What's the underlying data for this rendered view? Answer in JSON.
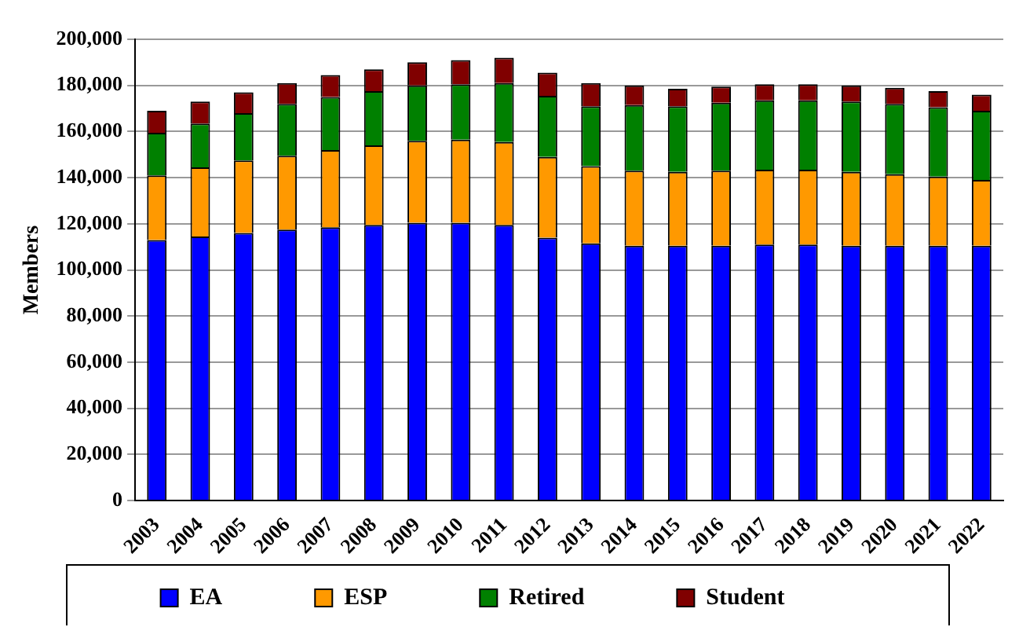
{
  "chart_data": {
    "type": "bar",
    "ylabel": "Members",
    "stacked": true,
    "grid": "y",
    "legend": "bottom",
    "categories": [
      "2003",
      "2004",
      "2005",
      "2006",
      "2007",
      "2008",
      "2009",
      "2010",
      "2011",
      "2012",
      "2013",
      "2014",
      "2015",
      "2016",
      "2017",
      "2018",
      "2019",
      "2020",
      "2021",
      "2022"
    ],
    "ylim": [
      0,
      200000
    ],
    "yticks": [
      0,
      {
        "value": 20000,
        "label": "20,000"
      },
      {
        "value": 40000,
        "label": "40,000"
      },
      {
        "value": 60000,
        "label": "60,000"
      },
      {
        "value": 80000,
        "label": "80,000"
      },
      {
        "value": 100000,
        "label": "100,000"
      },
      {
        "value": 120000,
        "label": "120,000"
      },
      {
        "value": 140000,
        "label": "140,000"
      },
      {
        "value": 160000,
        "label": "160,000"
      },
      {
        "value": 180000,
        "label": "180,000"
      },
      {
        "value": 200000,
        "label": "200,000"
      }
    ],
    "series": [
      {
        "name": "EA",
        "color": "#0000ff",
        "values": [
          113000,
          114500,
          116000,
          117500,
          118500,
          119500,
          120500,
          120500,
          119500,
          114000,
          111500,
          110500,
          110500,
          110500,
          111000,
          111000,
          110500,
          110500,
          110500,
          110500
        ]
      },
      {
        "name": "ESP",
        "color": "#ff9900",
        "values": [
          28000,
          30000,
          31500,
          32000,
          33500,
          34500,
          35500,
          36000,
          36000,
          35000,
          33500,
          32500,
          32000,
          32500,
          32500,
          32500,
          32000,
          31000,
          30000,
          28500
        ]
      },
      {
        "name": "Retired",
        "color": "#008000",
        "values": [
          18500,
          19000,
          20500,
          22500,
          23000,
          23500,
          24000,
          24000,
          25500,
          26500,
          26000,
          28500,
          28500,
          29500,
          30000,
          30000,
          30500,
          30500,
          30000,
          30000
        ]
      },
      {
        "name": "Student",
        "color": "#800000",
        "values": [
          9500,
          9500,
          9000,
          9000,
          9500,
          9500,
          10000,
          10500,
          11000,
          10000,
          10000,
          8500,
          7500,
          7000,
          7000,
          7000,
          7000,
          7000,
          7000,
          7000
        ]
      }
    ]
  }
}
